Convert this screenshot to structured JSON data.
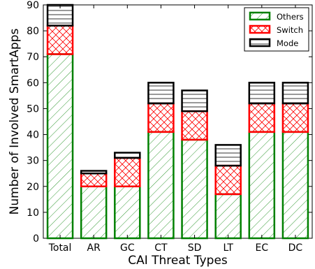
{
  "chart_data": {
    "type": "bar",
    "stacked": true,
    "title": "",
    "xlabel": "CAI Threat Types",
    "ylabel": "Number of Involved SmartApps",
    "ylim": [
      0,
      90
    ],
    "yticks": [
      0,
      10,
      20,
      30,
      40,
      50,
      60,
      70,
      80,
      90
    ],
    "grid": false,
    "legend_position": "top-right",
    "categories": [
      "Total",
      "AR",
      "GC",
      "CT",
      "SD",
      "LT",
      "EC",
      "DC"
    ],
    "series": [
      {
        "name": "Others",
        "color": "#008000",
        "hatch": "diagonal",
        "values": [
          71,
          20,
          20,
          41,
          38,
          17,
          41,
          41
        ]
      },
      {
        "name": "Switch",
        "color": "#ff0000",
        "hatch": "crosshatch",
        "values": [
          11,
          5,
          11,
          11,
          11,
          11,
          11,
          11
        ]
      },
      {
        "name": "Mode",
        "color": "#000000",
        "hatch": "horizontal",
        "values": [
          8,
          1,
          2,
          8,
          8,
          8,
          8,
          8
        ]
      }
    ]
  }
}
